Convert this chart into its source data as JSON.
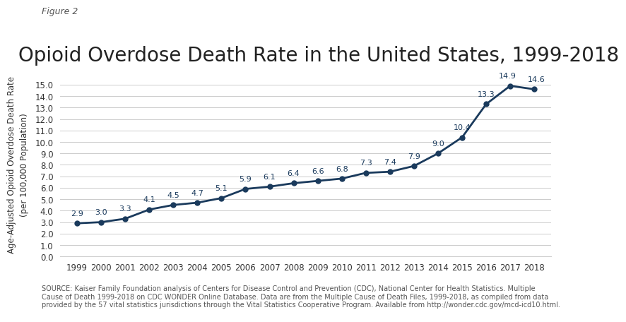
{
  "years": [
    1999,
    2000,
    2001,
    2002,
    2003,
    2004,
    2005,
    2006,
    2007,
    2008,
    2009,
    2010,
    2011,
    2012,
    2013,
    2014,
    2015,
    2016,
    2017,
    2018
  ],
  "values": [
    2.9,
    3.0,
    3.3,
    4.1,
    4.5,
    4.7,
    5.1,
    5.9,
    6.1,
    6.4,
    6.6,
    6.8,
    7.3,
    7.4,
    7.9,
    9.0,
    10.4,
    13.3,
    14.9,
    14.6
  ],
  "line_color": "#1a3a5c",
  "marker_color": "#1a3a5c",
  "background_color": "#ffffff",
  "figure_label": "Figure 2",
  "title": "Opioid Overdose Death Rate in the United States, 1999-2018",
  "ylabel": "Age-Adjusted Opioid Overdose Death Rate\n(per 100,000 Population)",
  "ylim": [
    0,
    16.0
  ],
  "yticks": [
    0.0,
    1.0,
    2.0,
    3.0,
    4.0,
    5.0,
    6.0,
    7.0,
    8.0,
    9.0,
    10.0,
    11.0,
    12.0,
    13.0,
    14.0,
    15.0
  ],
  "source_text": "SOURCE: Kaiser Family Foundation analysis of Centers for Disease Control and Prevention (CDC), National Center for Health Statistics. Multiple\nCause of Death 1999-2018 on CDC WONDER Online Database. Data are from the Multiple Cause of Death Files, 1999-2018, as compiled from data\nprovided by the 57 vital statistics jurisdictions through the Vital Statistics Cooperative Program. Available from http://wonder.cdc.gov/mcd-icd10.html.",
  "kff_color": "#005a8e",
  "title_fontsize": 20,
  "label_fontsize": 8.5,
  "annotation_fontsize": 8,
  "source_fontsize": 7
}
